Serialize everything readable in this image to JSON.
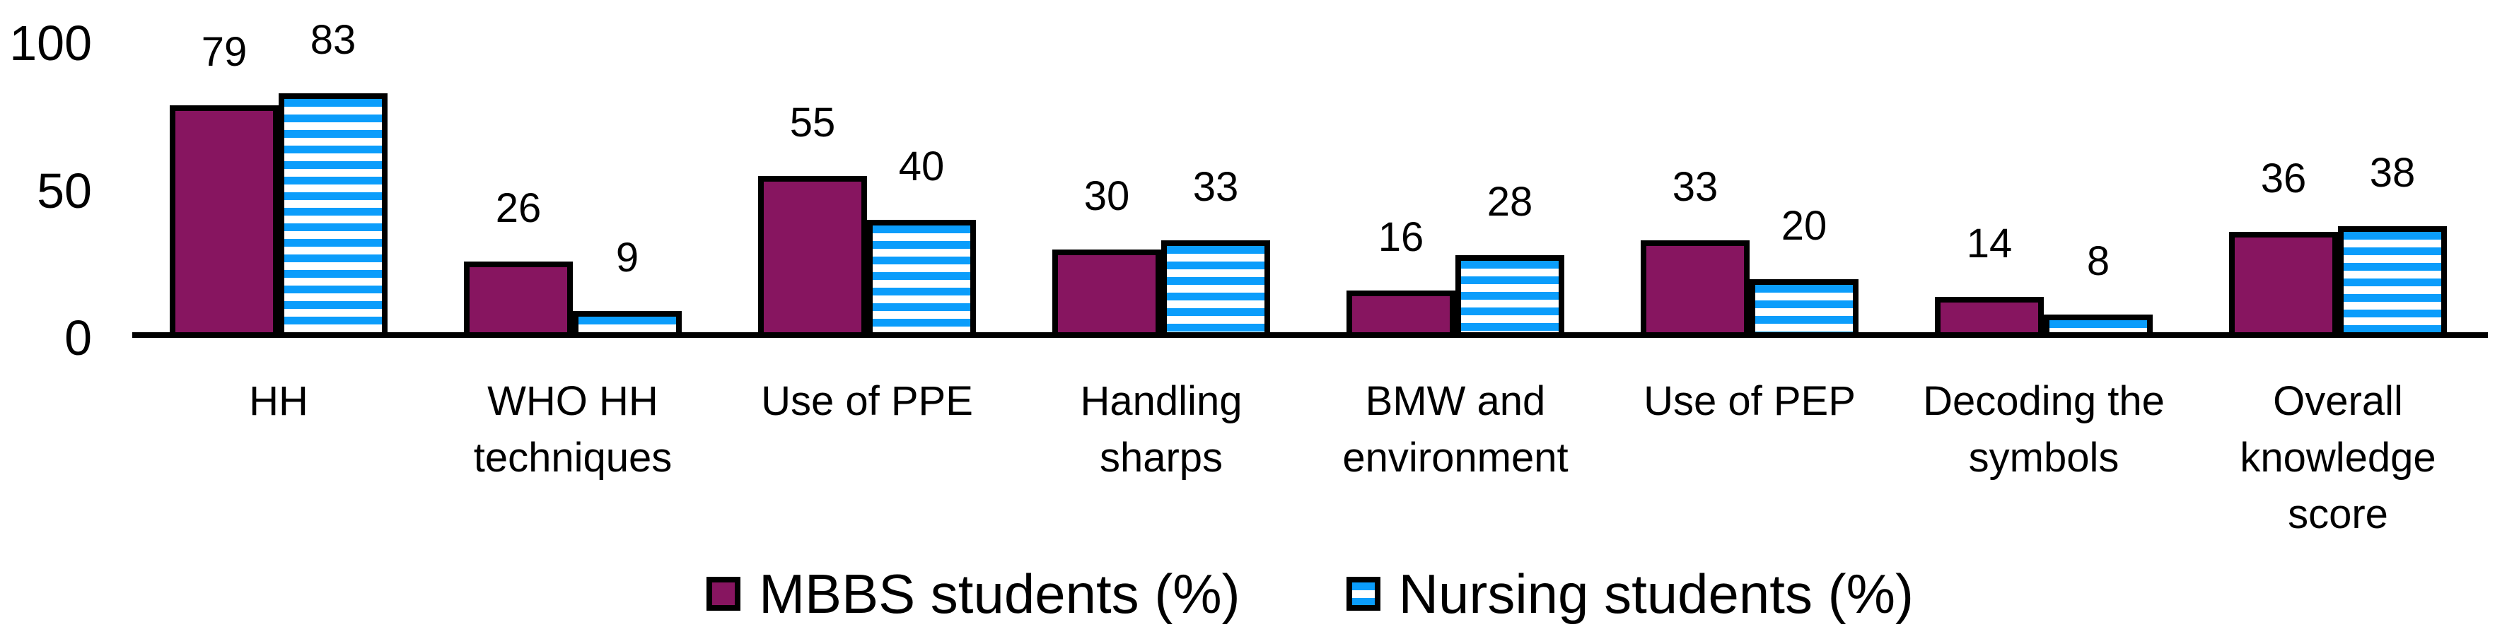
{
  "chart_data": {
    "type": "bar",
    "categories": [
      "HH",
      "WHO HH techniques",
      "Use of PPE",
      "Handling sharps",
      "BMW and environment",
      "Use of PEP",
      "Decoding the symbols",
      "Overall knowledge score"
    ],
    "series": [
      {
        "name": "MBBS students (%)",
        "key": "mbbs",
        "pattern": "solid",
        "color": "#871560",
        "values": [
          79,
          26,
          55,
          30,
          16,
          33,
          14,
          36
        ]
      },
      {
        "name": "Nursing students (%)",
        "key": "nursing",
        "pattern": "horizontal-stripes",
        "color": "#0B9DFB",
        "stripe_background": "#ffffff",
        "values": [
          83,
          9,
          40,
          33,
          28,
          20,
          8,
          38
        ]
      }
    ],
    "title": "",
    "xlabel": "",
    "ylabel": "",
    "ylim": [
      0,
      100
    ],
    "yticks": [
      100,
      50,
      0
    ],
    "grid": false,
    "value_labels": true,
    "legend_position": "bottom-center",
    "bar_outline_color": "#000000",
    "axis_color": "#000000"
  }
}
